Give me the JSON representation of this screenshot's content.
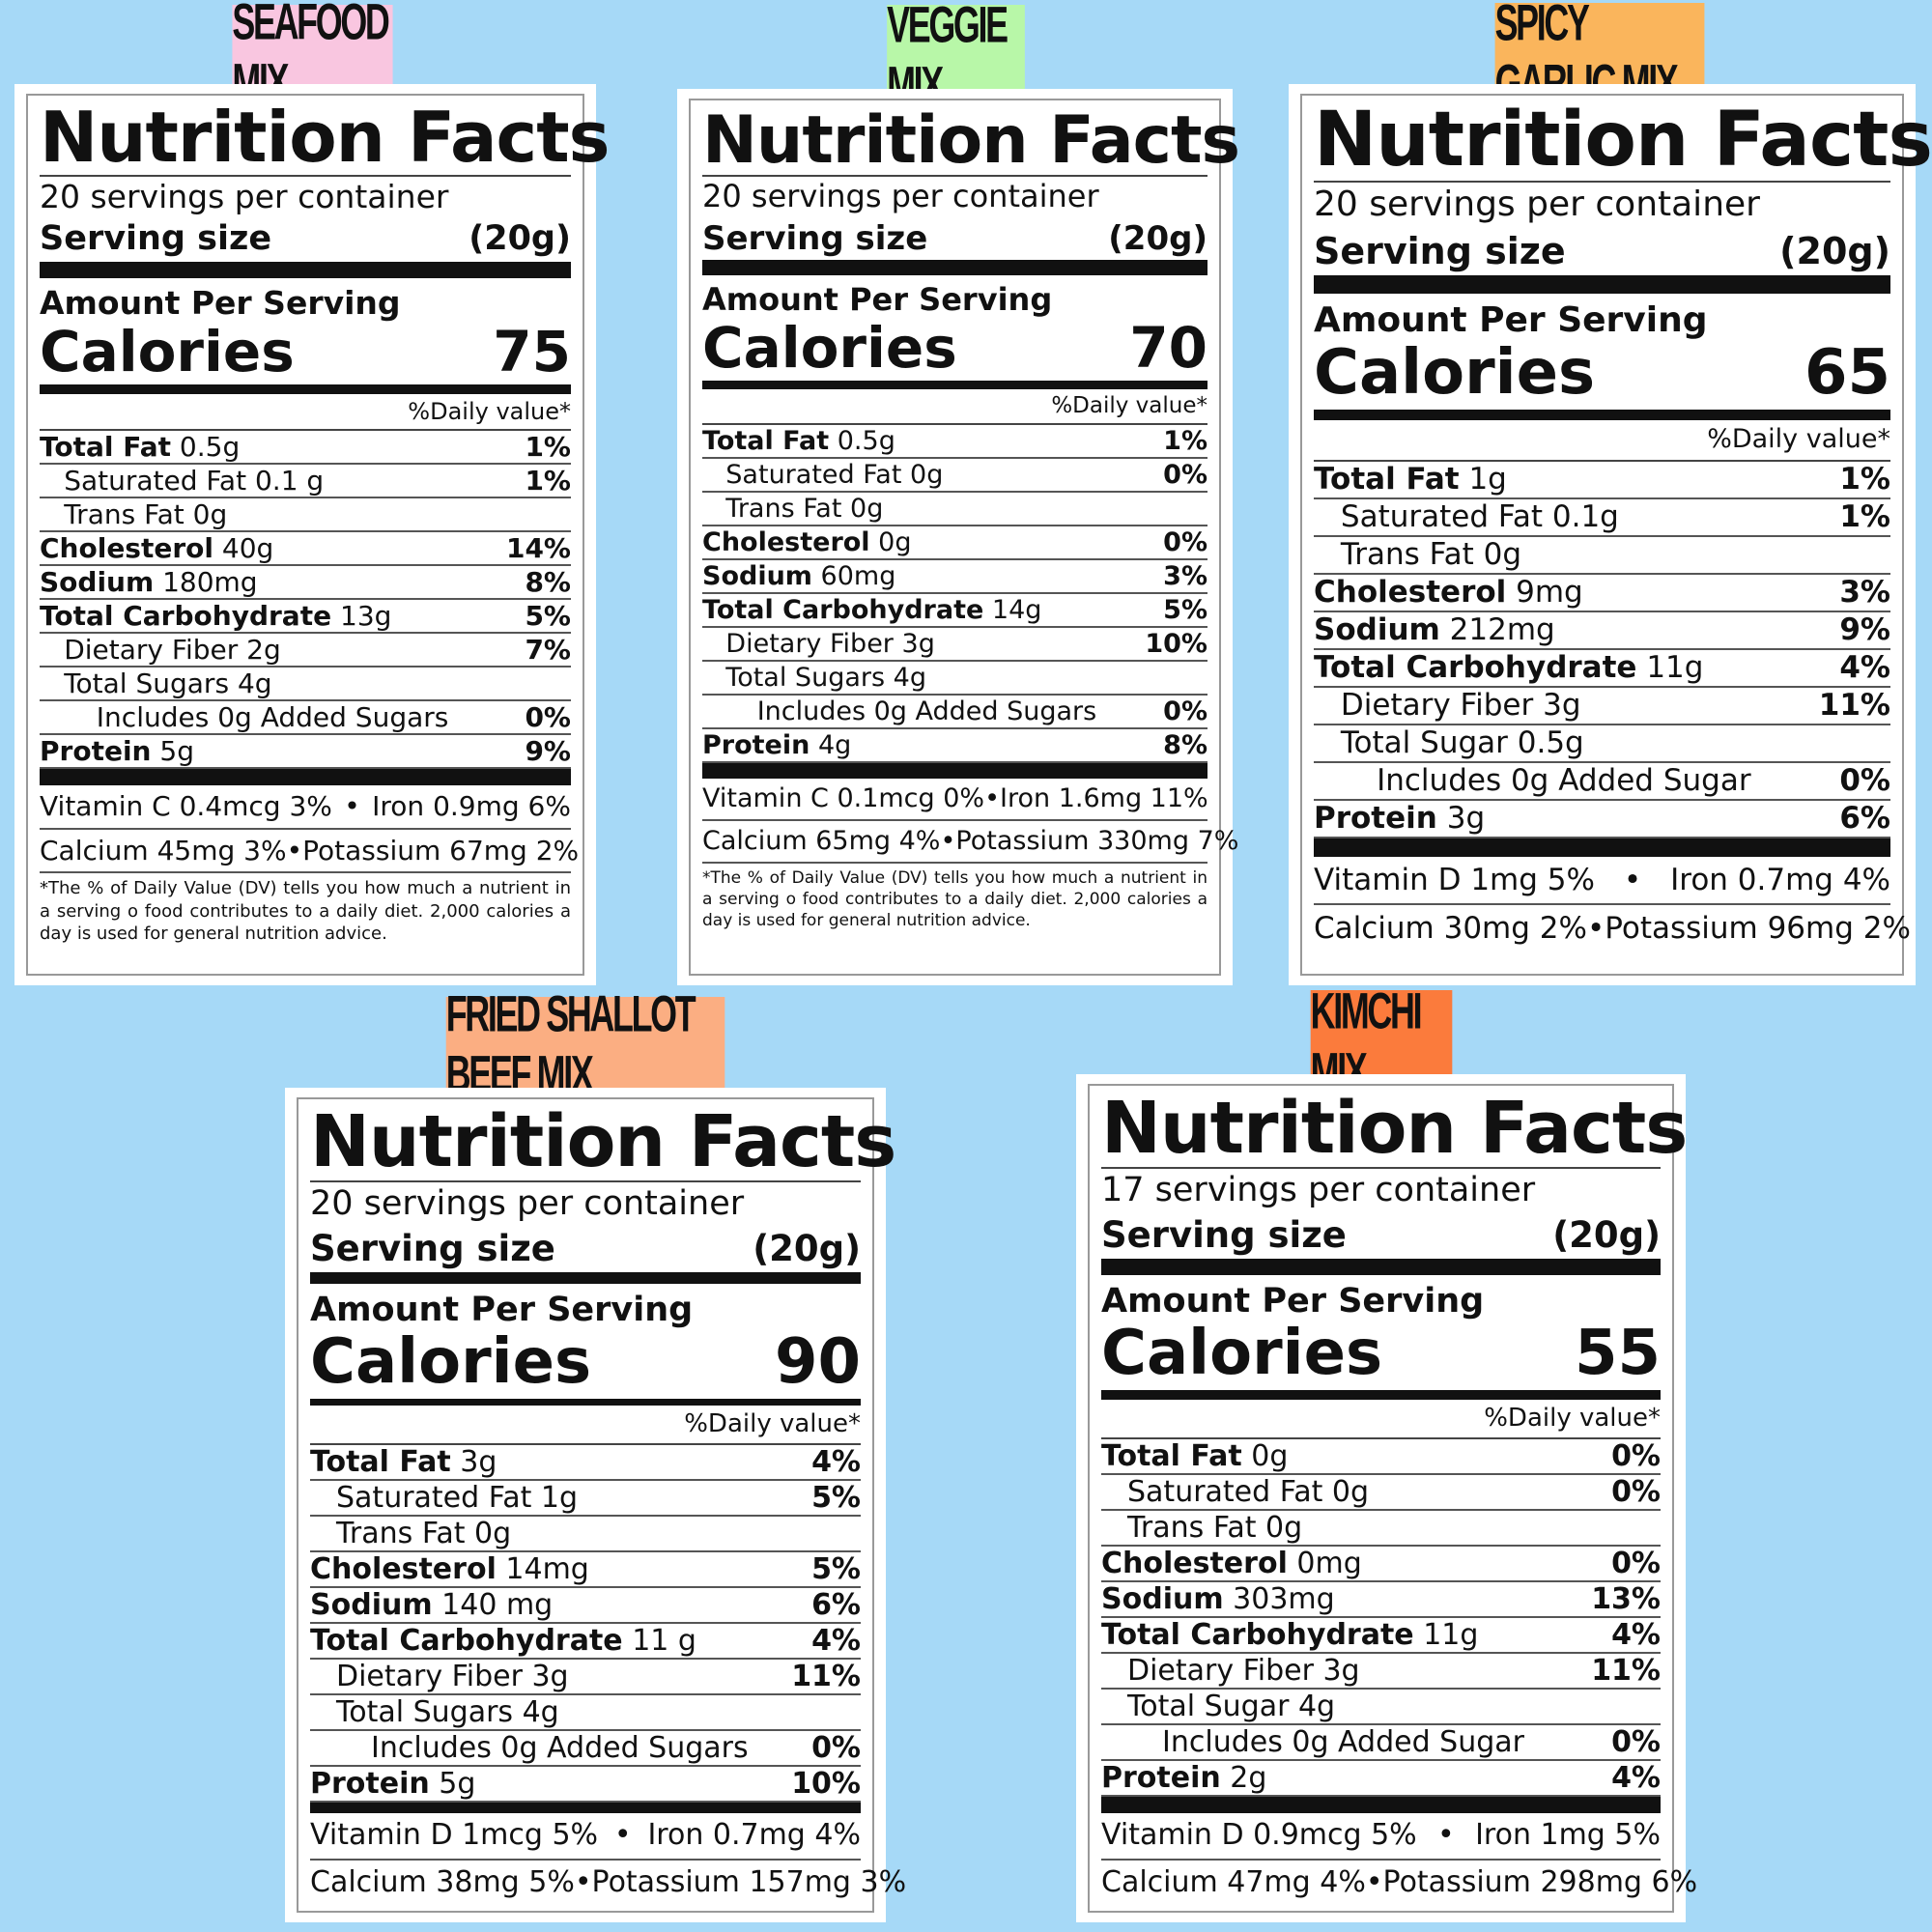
{
  "common": {
    "title": "Nutrition Facts",
    "serving_size_label": "Serving size",
    "amount_per_serving": "Amount Per Serving",
    "calories_label": "Calories",
    "daily_value_header": "%Daily value*"
  },
  "colors": {
    "background": "#a6d9f7",
    "seafood": "#f9c6e0",
    "veggie": "#b8f7a8",
    "spicy_garlic": "#fab55c",
    "fried_shallot_beef": "#fbae82",
    "kimchi": "#fb7b3c"
  },
  "panels": [
    {
      "name": "SEAFOOD MIX",
      "servings": "20 servings per container",
      "serving_size": "(20g)",
      "calories": "75",
      "rows": [
        {
          "label": "Total Fat",
          "amount": "0.5g",
          "dv": "1%",
          "indent": 0
        },
        {
          "label": "Saturated Fat",
          "amount": "0.1 g",
          "dv": "1%",
          "indent": 1
        },
        {
          "label": "Trans Fat",
          "amount": "0g",
          "dv": "",
          "indent": 1
        },
        {
          "label": "Cholesterol",
          "amount": "40g",
          "dv": "14%",
          "indent": 0
        },
        {
          "label": "Sodium",
          "amount": "180mg",
          "dv": "8%",
          "indent": 0
        },
        {
          "label": "Total Carbohydrate",
          "amount": "13g",
          "dv": "5%",
          "indent": 0
        },
        {
          "label": "Dietary Fiber",
          "amount": "2g",
          "dv": "7%",
          "indent": 1
        },
        {
          "label": "Total Sugars",
          "amount": "4g",
          "dv": "",
          "indent": 1
        },
        {
          "label": "Includes 0g Added Sugars",
          "amount": "",
          "dv": "0%",
          "indent": 2
        },
        {
          "label": "Protein",
          "amount": "5g",
          "dv": "9%",
          "indent": 0
        }
      ],
      "vitamins": [
        {
          "left": "Vitamin C 0.4mcg 3%",
          "right": "Iron 0.9mg 6%"
        },
        {
          "left": "Calcium 45mg 3%",
          "right": "Potassium 67mg 2%"
        }
      ],
      "footnote": "*The % of Daily Value (DV) tells you how much a nutrient in a serving o food contributes to a daily diet. 2,000 calories a day is used for general nutrition advice."
    },
    {
      "name": "VEGGIE MIX",
      "servings": "20 servings per container",
      "serving_size": "(20g)",
      "calories": "70",
      "rows": [
        {
          "label": "Total Fat",
          "amount": "0.5g",
          "dv": "1%",
          "indent": 0
        },
        {
          "label": "Saturated Fat",
          "amount": "0g",
          "dv": "0%",
          "indent": 1
        },
        {
          "label": "Trans Fat",
          "amount": "0g",
          "dv": "",
          "indent": 1
        },
        {
          "label": "Cholesterol",
          "amount": "0g",
          "dv": "0%",
          "indent": 0
        },
        {
          "label": "Sodium",
          "amount": "60mg",
          "dv": "3%",
          "indent": 0
        },
        {
          "label": "Total Carbohydrate",
          "amount": "14g",
          "dv": "5%",
          "indent": 0
        },
        {
          "label": "Dietary Fiber",
          "amount": "3g",
          "dv": "10%",
          "indent": 1
        },
        {
          "label": "Total Sugars",
          "amount": "4g",
          "dv": "",
          "indent": 1
        },
        {
          "label": "Includes 0g Added Sugars",
          "amount": "",
          "dv": "0%",
          "indent": 2
        },
        {
          "label": "Protein",
          "amount": "4g",
          "dv": "8%",
          "indent": 0
        }
      ],
      "vitamins": [
        {
          "left": "Vitamin C 0.1mcg 0%",
          "right": "Iron 1.6mg 11%"
        },
        {
          "left": "Calcium 65mg 4%",
          "right": "Potassium 330mg 7%"
        }
      ],
      "footnote": "*The % of Daily Value (DV) tells you how much a nutrient in a serving o food contributes to a daily diet. 2,000 calories a day is used for general nutrition advice."
    },
    {
      "name": "SPICY GARLIC MIX",
      "servings": "20 servings per container",
      "serving_size": "(20g)",
      "calories": "65",
      "rows": [
        {
          "label": "Total Fat",
          "amount": "1g",
          "dv": "1%",
          "indent": 0
        },
        {
          "label": "Saturated Fat",
          "amount": "0.1g",
          "dv": "1%",
          "indent": 1
        },
        {
          "label": "Trans Fat",
          "amount": "0g",
          "dv": "",
          "indent": 1
        },
        {
          "label": "Cholesterol",
          "amount": "9mg",
          "dv": "3%",
          "indent": 0
        },
        {
          "label": "Sodium",
          "amount": "212mg",
          "dv": "9%",
          "indent": 0
        },
        {
          "label": "Total Carbohydrate",
          "amount": "11g",
          "dv": "4%",
          "indent": 0
        },
        {
          "label": "Dietary Fiber",
          "amount": "3g",
          "dv": "11%",
          "indent": 1
        },
        {
          "label": "Total Sugar",
          "amount": "0.5g",
          "dv": "",
          "indent": 1
        },
        {
          "label": "Includes 0g Added Sugar",
          "amount": "",
          "dv": "0%",
          "indent": 2
        },
        {
          "label": "Protein",
          "amount": "3g",
          "dv": "6%",
          "indent": 0
        }
      ],
      "vitamins": [
        {
          "left": "Vitamin D 1mg 5%",
          "right": "Iron 0.7mg 4%"
        },
        {
          "left": "Calcium 30mg 2%",
          "right": "Potassium 96mg 2%"
        }
      ],
      "footnote": ""
    },
    {
      "name": "FRIED SHALLOT BEEF MIX",
      "servings": "20 servings per container",
      "serving_size": "(20g)",
      "calories": "90",
      "rows": [
        {
          "label": "Total Fat",
          "amount": "3g",
          "dv": "4%",
          "indent": 0
        },
        {
          "label": "Saturated Fat",
          "amount": "1g",
          "dv": "5%",
          "indent": 1
        },
        {
          "label": "Trans Fat",
          "amount": "0g",
          "dv": "",
          "indent": 1
        },
        {
          "label": "Cholesterol",
          "amount": "14mg",
          "dv": "5%",
          "indent": 0
        },
        {
          "label": "Sodium",
          "amount": "140 mg",
          "dv": "6%",
          "indent": 0
        },
        {
          "label": "Total Carbohydrate",
          "amount": "11 g",
          "dv": "4%",
          "indent": 0
        },
        {
          "label": "Dietary Fiber",
          "amount": "3g",
          "dv": "11%",
          "indent": 1
        },
        {
          "label": "Total Sugars",
          "amount": "4g",
          "dv": "",
          "indent": 1
        },
        {
          "label": "Includes 0g Added Sugars",
          "amount": "",
          "dv": "0%",
          "indent": 2
        },
        {
          "label": "Protein",
          "amount": "5g",
          "dv": "10%",
          "indent": 0
        }
      ],
      "vitamins": [
        {
          "left": "Vitamin D  1mcg 5%",
          "right": "Iron 0.7mg 4%"
        },
        {
          "left": "Calcium 38mg 5%",
          "right": "Potassium 157mg 3%"
        }
      ],
      "footnote": ""
    },
    {
      "name": "KIMCHI MIX",
      "servings": "17 servings per container",
      "serving_size": "(20g)",
      "calories": "55",
      "rows": [
        {
          "label": "Total Fat",
          "amount": "0g",
          "dv": "0%",
          "indent": 0
        },
        {
          "label": "Saturated Fat",
          "amount": "0g",
          "dv": "0%",
          "indent": 1
        },
        {
          "label": "Trans Fat",
          "amount": "0g",
          "dv": "",
          "indent": 1
        },
        {
          "label": "Cholesterol",
          "amount": "0mg",
          "dv": "0%",
          "indent": 0
        },
        {
          "label": "Sodium",
          "amount": "303mg",
          "dv": "13%",
          "indent": 0
        },
        {
          "label": "Total Carbohydrate",
          "amount": "11g",
          "dv": "4%",
          "indent": 0
        },
        {
          "label": "Dietary Fiber",
          "amount": "3g",
          "dv": "11%",
          "indent": 1
        },
        {
          "label": "Total Sugar",
          "amount": "4g",
          "dv": "",
          "indent": 1
        },
        {
          "label": "Includes 0g Added Sugar",
          "amount": "",
          "dv": "0%",
          "indent": 2
        },
        {
          "label": "Protein",
          "amount": "2g",
          "dv": "4%",
          "indent": 0
        }
      ],
      "vitamins": [
        {
          "left": "Vitamin D 0.9mcg 5%",
          "right": "Iron 1mg 5%"
        },
        {
          "left": "Calcium 47mg 4%",
          "right": "Potassium 298mg 6%"
        }
      ],
      "footnote": ""
    }
  ]
}
